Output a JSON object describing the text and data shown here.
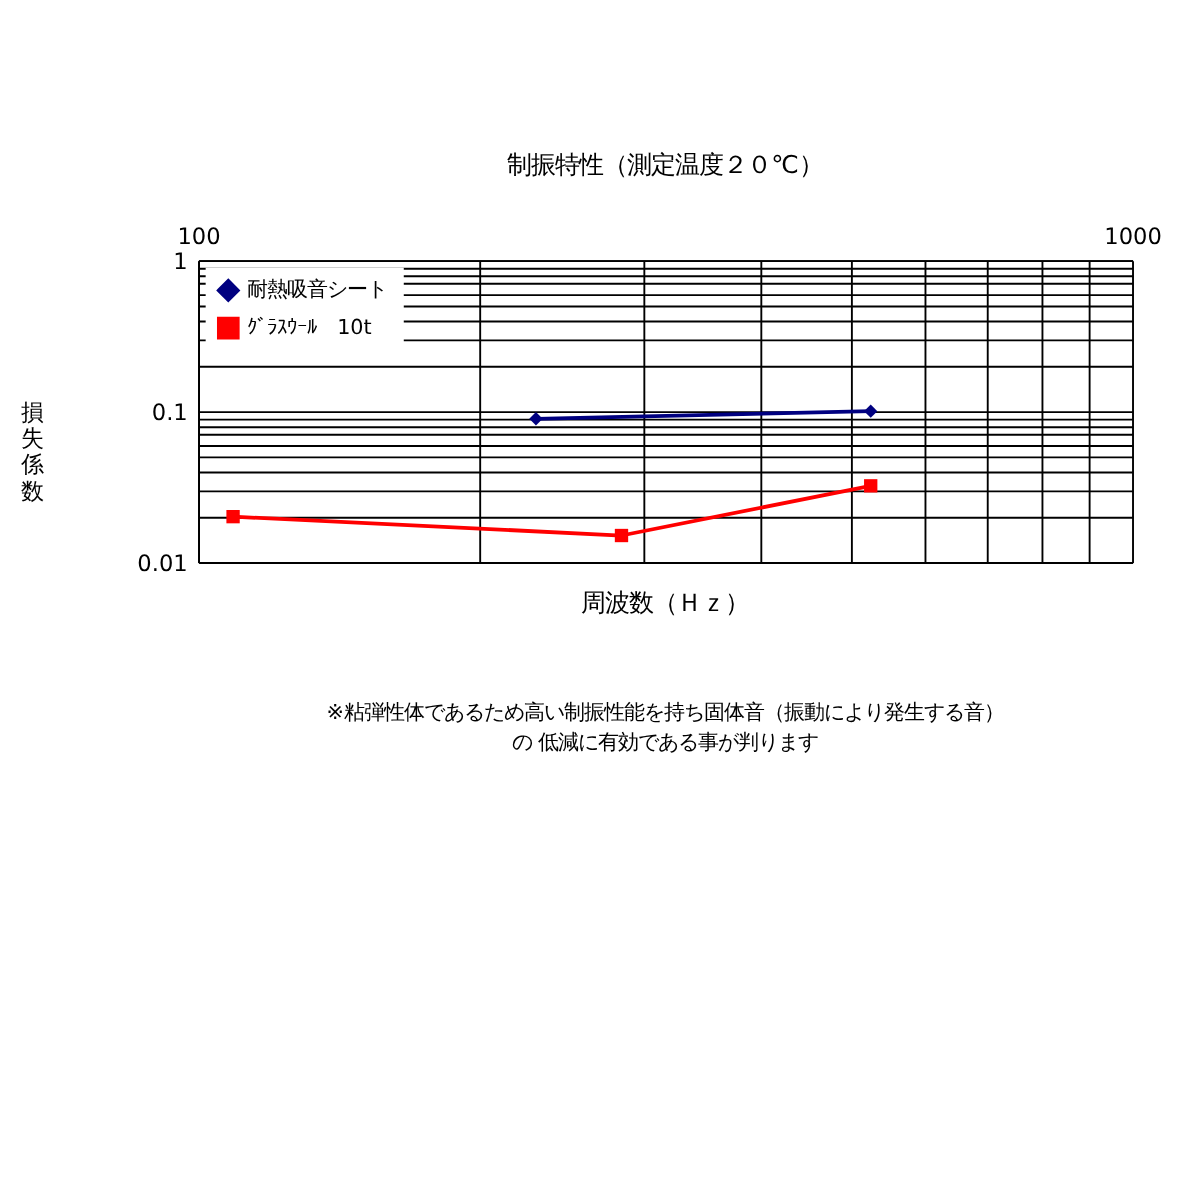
{
  "chart_data": {
    "type": "line",
    "title": "制振特性（測定温度２０℃）",
    "xlabel": "周波数（Ｈｚ）",
    "ylabel": "損失係数",
    "log": "xy",
    "grid": true,
    "legend": "top left",
    "xlim": [
      100,
      1000
    ],
    "ylim": [
      0.01,
      1
    ],
    "xticks": [
      100,
      {
        "value": 200,
        "label": null
      },
      {
        "value": 300,
        "label": null
      },
      {
        "value": 400,
        "label": null
      },
      {
        "value": 500,
        "label": null
      },
      {
        "value": 600,
        "label": null
      },
      {
        "value": 700,
        "label": null
      },
      {
        "value": 800,
        "label": null
      },
      {
        "value": 900,
        "label": null
      },
      1000
    ],
    "yticks": [
      0.01,
      {
        "value": 0.02,
        "label": null
      },
      {
        "value": 0.03,
        "label": null
      },
      {
        "value": 0.04,
        "label": null
      },
      {
        "value": 0.05,
        "label": null
      },
      {
        "value": 0.06,
        "label": null
      },
      {
        "value": 0.07,
        "label": null
      },
      {
        "value": 0.08,
        "label": null
      },
      {
        "value": 0.09,
        "label": null
      },
      0.1,
      {
        "value": 0.2,
        "label": null
      },
      {
        "value": 0.3,
        "label": null
      },
      {
        "value": 0.4,
        "label": null
      },
      {
        "value": 0.5,
        "label": null
      },
      {
        "value": 0.6,
        "label": null
      },
      {
        "value": 0.7,
        "label": null
      },
      {
        "value": 0.8,
        "label": null
      },
      {
        "value": 0.9,
        "label": null
      },
      1
    ],
    "series": [
      {
        "name": "耐熱吸音シート",
        "color": "#000080",
        "marker": "diamond",
        "x": [
          230,
          525
        ],
        "values": [
          0.089,
          0.1
        ]
      },
      {
        "name": "ｸﾞﾗｽｳｰﾙ　10t",
        "color": "#ff0000",
        "marker": "square",
        "x": [
          109,
          284,
          525
        ],
        "values": [
          0.02,
          0.015,
          0.032
        ]
      }
    ],
    "annotations": [
      "※粘弾性体であるため高い制振性能を持ち固体音（振動により発生する音）",
      "の 低減に有効である事が判ります"
    ]
  }
}
